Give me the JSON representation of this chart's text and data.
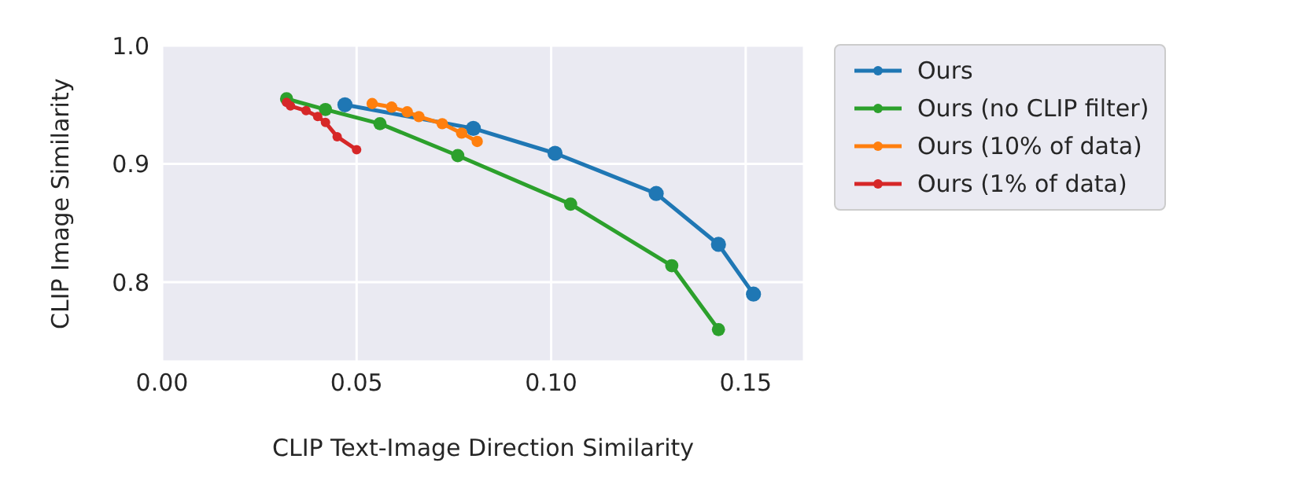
{
  "chart_data": {
    "type": "line",
    "xlabel": "CLIP Text-Image Direction Similarity",
    "ylabel": "CLIP Image Similarity",
    "xlim": [
      0,
      0.165
    ],
    "xticks": [
      {
        "value": 0,
        "label": "0.00"
      },
      {
        "value": 0.05,
        "label": "0.05"
      },
      {
        "value": 0.1,
        "label": "0.10"
      },
      {
        "value": 0.15,
        "label": "0.15"
      }
    ],
    "ylim": [
      0.733,
      1.0
    ],
    "yticks": [
      {
        "value": 0.8,
        "label": "0.8"
      },
      {
        "value": 0.9,
        "label": "0.9"
      },
      {
        "value": 1.0,
        "label": "1.0"
      }
    ],
    "grid": true,
    "legend": "right",
    "marker": "circle",
    "series": [
      {
        "name": "Ours",
        "color": "#1f77b4",
        "x": [
          0.047,
          0.08,
          0.101,
          0.127,
          0.143,
          0.152
        ],
        "values": [
          0.95,
          0.93,
          0.909,
          0.875,
          0.832,
          0.79
        ]
      },
      {
        "name": "Ours (no CLIP filter)",
        "color": "#2ca02c",
        "x": [
          0.032,
          0.042,
          0.056,
          0.076,
          0.105,
          0.131,
          0.143
        ],
        "values": [
          0.955,
          0.946,
          0.934,
          0.907,
          0.866,
          0.814,
          0.76
        ]
      },
      {
        "name": "Ours (10% of data)",
        "color": "#ff7f0e",
        "x": [
          0.054,
          0.059,
          0.063,
          0.066,
          0.072,
          0.077,
          0.081
        ],
        "values": [
          0.951,
          0.948,
          0.944,
          0.94,
          0.934,
          0.926,
          0.919
        ]
      },
      {
        "name": "Ours (1% of data)",
        "color": "#d62728",
        "x": [
          0.032,
          0.033,
          0.037,
          0.04,
          0.042,
          0.045,
          0.05
        ],
        "values": [
          0.952,
          0.949,
          0.945,
          0.94,
          0.935,
          0.923,
          0.912
        ]
      }
    ]
  }
}
